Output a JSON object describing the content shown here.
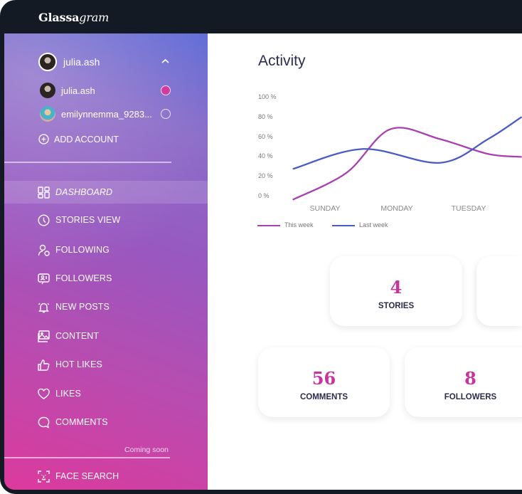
{
  "app": {
    "logo_bold": "Glassa",
    "logo_italic": "gram"
  },
  "account": {
    "current": "julia.ash",
    "accounts": [
      {
        "name": "julia.ash",
        "selected": true
      },
      {
        "name": "emilynnemma_9283...",
        "selected": false
      }
    ],
    "add_label": "ADD ACCOUNT"
  },
  "nav": {
    "items": [
      {
        "label": "DASHBOARD",
        "icon": "dashboard-icon",
        "active": true
      },
      {
        "label": "STORIES VIEW",
        "icon": "clock-icon"
      },
      {
        "label": "FOLLOWING",
        "icon": "user-follow-icon"
      },
      {
        "label": "FOLLOWERS",
        "icon": "followers-icon"
      },
      {
        "label": "NEW POSTS",
        "icon": "bell-icon"
      },
      {
        "label": "CONTENT",
        "icon": "image-icon"
      },
      {
        "label": "HOT LIKES",
        "icon": "thumbs-up-icon"
      },
      {
        "label": "LIKES",
        "icon": "heart-icon"
      },
      {
        "label": "COMMENTS",
        "icon": "comment-icon"
      }
    ],
    "coming_soon": "Coming soon",
    "face_search": "FACE SEARCH"
  },
  "main": {
    "title": "Activity"
  },
  "chart_data": {
    "type": "line",
    "categories": [
      "SUNDAY",
      "MONDAY",
      "TUESDAY"
    ],
    "yticks": [
      "0 %",
      "20 %",
      "40 %",
      "60 %",
      "80 %",
      "100 %"
    ],
    "ylim": [
      0,
      100
    ],
    "legend_position": "bottom-left",
    "series": [
      {
        "name": "This week",
        "color": "#a93fb0",
        "x": [
          -0.44,
          0.3,
          0.91,
          1.6,
          2.27,
          2.73
        ],
        "values": [
          -3,
          24,
          68,
          58,
          43,
          40
        ]
      },
      {
        "name": "Last week",
        "color": "#4a5bc4",
        "x": [
          -0.44,
          0.53,
          1.6,
          2.27,
          2.73
        ],
        "values": [
          28,
          48,
          34,
          58,
          80
        ]
      }
    ]
  },
  "stats": [
    {
      "value": "4",
      "label": "STORIES"
    },
    {
      "value": "56",
      "label": "COMMENTS"
    },
    {
      "value": "8",
      "label": "FOLLOWERS"
    }
  ],
  "colors": {
    "accent": "#c8349e",
    "sidebar_top": "#5e6bd6",
    "sidebar_bottom": "#dc3a9c",
    "dark": "#141a24"
  }
}
